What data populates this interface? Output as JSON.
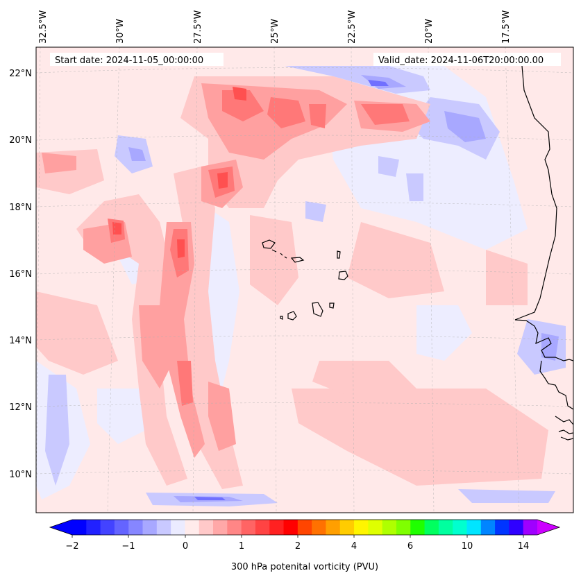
{
  "map": {
    "start_date": "Start date: 2024-11-05_00:00:00",
    "valid_date": "Valid_date: 2024-11-06T20:00:00.00",
    "lon_labels": [
      "32.5°W",
      "30°W",
      "27.5°W",
      "25°W",
      "22.5°W",
      "20°W",
      "17.5°W"
    ],
    "lat_labels": [
      "22°N",
      "20°N",
      "18°N",
      "16°N",
      "14°N",
      "12°N",
      "10°N"
    ],
    "extent": {
      "lon_min": -32.7,
      "lon_max": -15.3,
      "lat_min": 8.9,
      "lat_max": 22.8
    }
  },
  "colorbar": {
    "label": "300 hPa potenital vorticity (PVU)",
    "tick_labels": [
      "−2",
      "−1",
      "0",
      "1",
      "2",
      "4",
      "6",
      "10",
      "14"
    ],
    "colors": [
      "#0000ff",
      "#2121ff",
      "#4343ff",
      "#6464ff",
      "#8686ff",
      "#a8a8ff",
      "#c9c9ff",
      "#ebebff",
      "#ffebeb",
      "#ffc9c9",
      "#ffa8a8",
      "#ff8686",
      "#ff6464",
      "#ff4343",
      "#ff2121",
      "#ff0000",
      "#ff4500",
      "#ff7100",
      "#ff9f00",
      "#ffcc00",
      "#fff500",
      "#dfff00",
      "#afff00",
      "#7fff00",
      "#1fff00",
      "#00ff5f",
      "#00ff9f",
      "#00ffcf",
      "#00e5ff",
      "#0085ff",
      "#0035ff",
      "#2f00ff",
      "#9f00ff"
    ],
    "low_end_color": "#0000ff",
    "high_end_color": "#cc00ff"
  }
}
